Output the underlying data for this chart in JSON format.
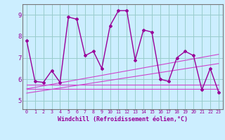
{
  "x": [
    0,
    1,
    2,
    3,
    4,
    5,
    6,
    7,
    8,
    9,
    10,
    11,
    12,
    13,
    14,
    15,
    16,
    17,
    18,
    19,
    20,
    21,
    22,
    23
  ],
  "y_main": [
    7.8,
    5.9,
    5.85,
    6.4,
    5.85,
    8.9,
    8.8,
    7.1,
    7.3,
    6.5,
    8.5,
    9.2,
    9.2,
    6.9,
    8.3,
    8.2,
    6.0,
    5.9,
    7.0,
    7.3,
    7.1,
    5.5,
    6.5,
    5.4
  ],
  "y_trend1": [
    5.55,
    5.62,
    5.69,
    5.76,
    5.83,
    5.9,
    5.97,
    6.04,
    6.11,
    6.18,
    6.25,
    6.32,
    6.39,
    6.46,
    6.53,
    6.6,
    6.67,
    6.74,
    6.81,
    6.88,
    6.95,
    7.02,
    7.09,
    7.16
  ],
  "y_trend2": [
    5.35,
    5.41,
    5.47,
    5.53,
    5.59,
    5.65,
    5.71,
    5.77,
    5.83,
    5.89,
    5.95,
    6.01,
    6.07,
    6.13,
    6.19,
    6.25,
    6.31,
    6.37,
    6.43,
    6.49,
    6.55,
    6.61,
    6.67,
    6.73
  ],
  "y_flat1": [
    5.75,
    5.75,
    5.75,
    5.75,
    5.75,
    5.75,
    5.75,
    5.75,
    5.75,
    5.75,
    5.75,
    5.75,
    5.75,
    5.75,
    5.75,
    5.75,
    5.75,
    5.75,
    5.75,
    5.75,
    5.75,
    5.75,
    5.75,
    5.75
  ],
  "y_flat2": [
    5.55,
    5.55,
    5.55,
    5.55,
    5.55,
    5.55,
    5.55,
    5.55,
    5.55,
    5.55,
    5.55,
    5.55,
    5.55,
    5.55,
    5.55,
    5.55,
    5.55,
    5.55,
    5.55,
    5.55,
    5.55,
    5.55,
    5.55,
    5.55
  ],
  "color_main": "#990099",
  "color_lines": "#cc44cc",
  "bg_color": "#cceeff",
  "grid_color": "#99cccc",
  "ylabel_vals": [
    5,
    6,
    7,
    8,
    9
  ],
  "xlabel_vals": [
    0,
    1,
    2,
    3,
    4,
    5,
    6,
    7,
    8,
    9,
    10,
    11,
    12,
    13,
    14,
    15,
    16,
    17,
    18,
    19,
    20,
    21,
    22,
    23
  ],
  "xlabel": "Windchill (Refroidissement éolien,°C)",
  "ylim": [
    4.6,
    9.5
  ],
  "xlim": [
    -0.5,
    23.5
  ]
}
